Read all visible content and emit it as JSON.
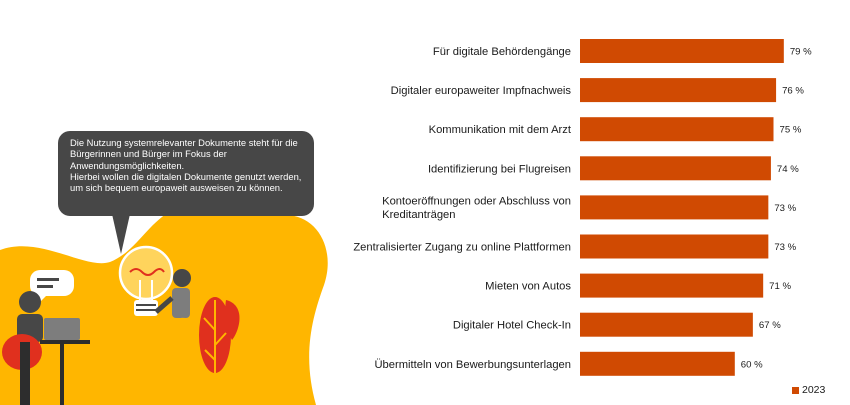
{
  "callout": {
    "line1": "Die Nutzung systemrelevanter Dokumente steht für die Bürgerinnen und Bürger im Fokus der Anwendungsmöglichkeiten.",
    "line2": "Hierbei wollen die digitalen Dokumente genutzt werden, um sich bequem europaweit ausweisen zu können."
  },
  "colors": {
    "bar": "#d04a02",
    "accent_yellow": "#ffb600",
    "bubble": "#474747"
  },
  "chart_data": {
    "type": "bar",
    "orientation": "horizontal",
    "categories": [
      "Für digitale Behördengänge",
      "Digitaler europaweiter Impfnachweis",
      "Kommunikation mit dem Arzt",
      "Identifizierung bei Flugreisen",
      "Kontoeröffnungen oder Abschluss von Kreditanträgen",
      "Zentralisierter Zugang zu online Plattformen",
      "Mieten von Autos",
      "Digitaler Hotel Check-In",
      "Übermitteln von Bewerbungsunterlagen"
    ],
    "category_lines": [
      [
        "Für digitale Behördengänge"
      ],
      [
        "Digitaler europaweiter Impfnachweis"
      ],
      [
        "Kommunikation mit dem Arzt"
      ],
      [
        "Identifizierung bei Flugreisen"
      ],
      [
        "Kontoeröffnungen oder Abschluss von",
        "Kreditanträgen"
      ],
      [
        "Zentralisierter Zugang zu online Plattformen"
      ],
      [
        "Mieten von Autos"
      ],
      [
        "Digitaler Hotel Check-In"
      ],
      [
        "Übermitteln von Bewerbungsunterlagen"
      ]
    ],
    "series": [
      {
        "name": "2023",
        "values": [
          79,
          76,
          75,
          74,
          73,
          73,
          71,
          67,
          60
        ]
      }
    ],
    "value_labels": [
      "79 %",
      "76 %",
      "75 %",
      "74 %",
      "73 %",
      "73 %",
      "71 %",
      "67 %",
      "60 %"
    ],
    "xlim": [
      0,
      100
    ],
    "grid": false,
    "legend_position": "bottom-right"
  }
}
